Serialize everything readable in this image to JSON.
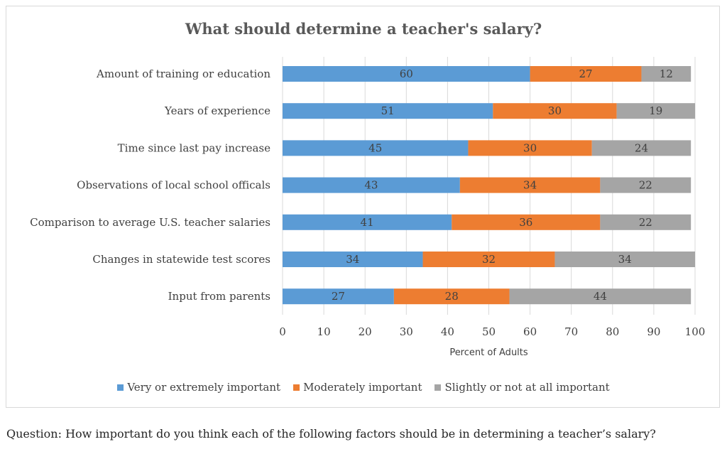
{
  "chart_data": {
    "type": "bar",
    "orientation": "horizontal",
    "stacked": true,
    "title": "What should determine a teacher's salary?",
    "xlabel": "Percent of Adults",
    "ylabel": "",
    "xlim": [
      0,
      100
    ],
    "xticks": [
      "0",
      "10",
      "20",
      "30",
      "40",
      "50",
      "60",
      "70",
      "80",
      "90",
      "100"
    ],
    "categories": [
      "Amount of training or education",
      "Years of experience",
      "Time since last pay increase",
      "Observations of local school officals",
      "Comparison to average U.S. teacher salaries",
      "Changes in statewide test scores",
      "Input from parents"
    ],
    "series": [
      {
        "name": "Very or extremely important",
        "color": "#5b9bd5",
        "values": [
          60,
          51,
          45,
          43,
          41,
          34,
          27
        ]
      },
      {
        "name": "Moderately important",
        "color": "#ed7d31",
        "values": [
          27,
          30,
          30,
          34,
          36,
          32,
          28
        ]
      },
      {
        "name": "Slightly or not at all important",
        "color": "#a5a5a5",
        "values": [
          12,
          19,
          24,
          22,
          22,
          34,
          44
        ]
      }
    ],
    "legend": "bottom",
    "grid": "vertical"
  },
  "question": "Question: How important do you think each of the following factors should be in determining a teacher’s salary?"
}
